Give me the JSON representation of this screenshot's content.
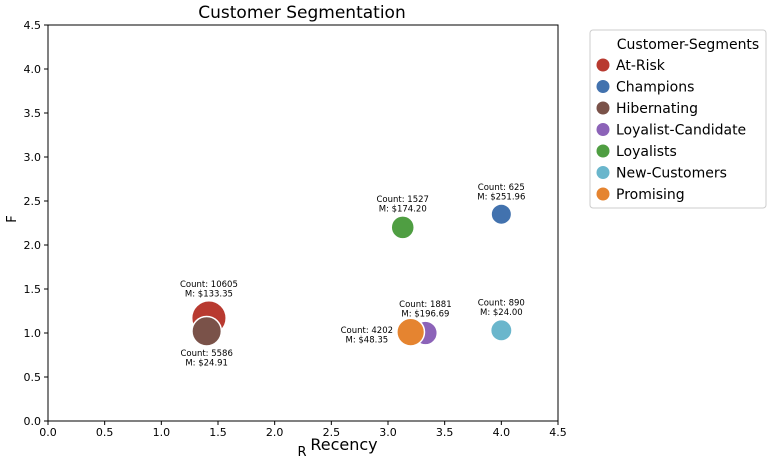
{
  "chart_data": {
    "type": "scatter",
    "title": "Customer Segmentation",
    "subtitle": "Recency",
    "xlabel": "R",
    "ylabel": "F",
    "xlim": [
      0,
      4.5
    ],
    "ylim": [
      0,
      4.5
    ],
    "xticks": [
      "0.0",
      "0.5",
      "1.0",
      "1.5",
      "2.0",
      "2.5",
      "3.0",
      "3.5",
      "4.0",
      "4.5"
    ],
    "yticks": [
      "0.0",
      "0.5",
      "1.0",
      "1.5",
      "2.0",
      "2.5",
      "3.0",
      "3.5",
      "4.0",
      "4.5"
    ],
    "grid": false,
    "legend": {
      "title": "Customer-Segments",
      "placement": "outside-right"
    },
    "series": [
      {
        "name": "At-Risk",
        "color": "#b83a30",
        "x": 1.42,
        "y": 1.17,
        "count": 10605,
        "annotation": [
          "Count: 10605",
          "M: $133.35"
        ],
        "label_pos": "above"
      },
      {
        "name": "Champions",
        "color": "#4272ae",
        "x": 4.0,
        "y": 2.35,
        "count": 625,
        "annotation": [
          "Count: 625",
          "M: $251.96"
        ],
        "label_pos": "above"
      },
      {
        "name": "Hibernating",
        "color": "#7a5249",
        "x": 1.4,
        "y": 1.02,
        "count": 5586,
        "annotation": [
          "Count: 5586",
          "M: $24.91"
        ],
        "label_pos": "below"
      },
      {
        "name": "Loyalist-Candidate",
        "color": "#8c63b8",
        "x": 3.33,
        "y": 1.0,
        "count": 1881,
        "annotation": [
          "Count: 1881",
          "M: $196.69"
        ],
        "label_pos": "above"
      },
      {
        "name": "Loyalists",
        "color": "#4f9e42",
        "x": 3.13,
        "y": 2.2,
        "count": 1527,
        "annotation": [
          "Count: 1527",
          "M: $174.20"
        ],
        "label_pos": "above"
      },
      {
        "name": "New-Customers",
        "color": "#6ab6cc",
        "x": 4.0,
        "y": 1.03,
        "count": 890,
        "annotation": [
          "Count: 890",
          "M: $24.00"
        ],
        "label_pos": "above"
      },
      {
        "name": "Promising",
        "color": "#e58430",
        "x": 3.2,
        "y": 1.01,
        "count": 4202,
        "annotation": [
          "Count: 4202",
          "M: $48.35"
        ],
        "label_pos": "left"
      }
    ]
  }
}
